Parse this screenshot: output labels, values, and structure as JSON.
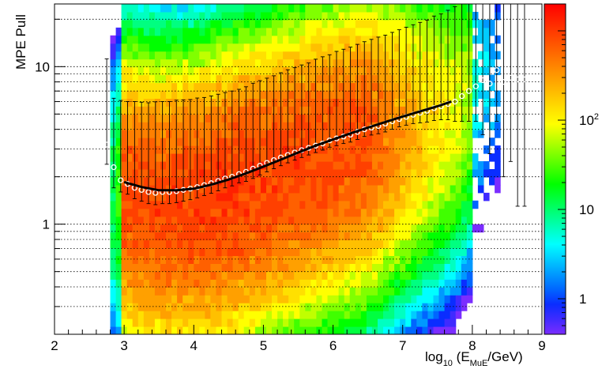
{
  "chart_data": {
    "type": "heatmap",
    "title": "",
    "xlabel": {
      "prefix": "log",
      "sub1": "10",
      "mid": " (E",
      "sub2": "MuE",
      "suffix": "/GeV)"
    },
    "ylabel": "MPE Pull",
    "xlim": [
      2,
      9
    ],
    "ylim": [
      0.2,
      25
    ],
    "y_scale": "log",
    "x_ticks": [
      "2",
      "3",
      "4",
      "5",
      "6",
      "7",
      "8",
      "9"
    ],
    "y_ticks": [
      {
        "value": 1,
        "label": "1"
      },
      {
        "value": 10,
        "label": "10"
      }
    ],
    "colorbar": {
      "scale": "log",
      "range": [
        0.4,
        2000
      ],
      "ticks": [
        {
          "value": 1,
          "label": "1"
        },
        {
          "value": 10,
          "label": "10"
        },
        {
          "value": 100,
          "label": "10",
          "sup": "2"
        }
      ],
      "colors": [
        "#7b2dff",
        "#3f2bff",
        "#0a2dff",
        "#0066ff",
        "#0099ff",
        "#00ccff",
        "#00ffff",
        "#00ffc0",
        "#00ff80",
        "#00ff40",
        "#00ff00",
        "#40ff00",
        "#80ff00",
        "#c0ff00",
        "#ffff00",
        "#ffe000",
        "#ffc000",
        "#ffa000",
        "#ff8000",
        "#ff6000",
        "#ff4000",
        "#ff2000",
        "#ff0000"
      ]
    },
    "grid": {
      "horizontal_dotted": true
    },
    "profile": {
      "x": [
        2.75,
        2.85,
        2.95,
        3.05,
        3.15,
        3.25,
        3.35,
        3.45,
        3.55,
        3.65,
        3.75,
        3.85,
        3.95,
        4.05,
        4.15,
        4.25,
        4.35,
        4.45,
        4.55,
        4.65,
        4.75,
        4.85,
        4.95,
        5.05,
        5.15,
        5.25,
        5.35,
        5.45,
        5.55,
        5.65,
        5.75,
        5.85,
        5.95,
        6.05,
        6.15,
        6.25,
        6.35,
        6.45,
        6.55,
        6.65,
        6.75,
        6.85,
        6.95,
        7.05,
        7.15,
        7.25,
        7.35,
        7.45,
        7.55,
        7.65,
        7.75,
        7.85,
        7.95,
        8.05,
        8.15,
        8.25,
        8.35,
        8.45,
        8.55,
        8.65,
        8.75
      ],
      "y": [
        3.2,
        2.3,
        1.9,
        1.8,
        1.7,
        1.65,
        1.6,
        1.58,
        1.6,
        1.6,
        1.62,
        1.65,
        1.68,
        1.72,
        1.77,
        1.82,
        1.88,
        1.95,
        2.0,
        2.08,
        2.15,
        2.25,
        2.35,
        2.45,
        2.55,
        2.65,
        2.75,
        2.85,
        2.95,
        3.05,
        3.15,
        3.25,
        3.4,
        3.5,
        3.6,
        3.7,
        3.85,
        4.0,
        4.1,
        4.2,
        4.35,
        4.5,
        4.65,
        4.8,
        4.95,
        5.1,
        5.25,
        5.45,
        5.6,
        5.8,
        6.0,
        6.5,
        7.0,
        7.5,
        8.2,
        7.8,
        9.5,
        8.0,
        8.5,
        8.3,
        8.3
      ],
      "err_lo": [
        0.8,
        0.6,
        0.3,
        0.25,
        0.25,
        0.25,
        0.25,
        0.25,
        0.25,
        0.25,
        0.25,
        0.25,
        0.25,
        0.25,
        0.25,
        0.25,
        0.25,
        0.25,
        0.25,
        0.25,
        0.28,
        0.3,
        0.3,
        0.3,
        0.3,
        0.3,
        0.3,
        0.3,
        0.3,
        0.3,
        0.3,
        0.3,
        0.32,
        0.35,
        0.35,
        0.38,
        0.4,
        0.4,
        0.42,
        0.45,
        0.5,
        0.5,
        0.5,
        0.55,
        0.6,
        0.7,
        0.8,
        0.9,
        1.0,
        1.2,
        1.5,
        2.0,
        2.5,
        3.0,
        4.5,
        5.0,
        5.0,
        6.0,
        6.0,
        7.0,
        7.0
      ],
      "err_hi": [
        8.0,
        4.0,
        4.2,
        4.2,
        4.3,
        4.3,
        4.3,
        4.4,
        4.4,
        4.4,
        4.5,
        4.5,
        4.5,
        4.6,
        4.6,
        4.7,
        4.8,
        4.9,
        5.0,
        5.1,
        5.3,
        5.6,
        5.8,
        6.0,
        6.2,
        6.5,
        6.8,
        7.0,
        7.3,
        7.5,
        8.0,
        8.3,
        8.5,
        9.0,
        9.3,
        9.6,
        10.0,
        10.4,
        10.8,
        11.2,
        11.5,
        12.0,
        12.5,
        13.0,
        13.5,
        14.0,
        14.5,
        15.5,
        16.0,
        17.0,
        18.0,
        19.0,
        20.0,
        21.0,
        22.0,
        22.0,
        22.0,
        22.0,
        22.0,
        22.0,
        22.0
      ]
    },
    "fit": {
      "x": [
        3.0,
        3.25,
        3.5,
        3.75,
        4.0,
        4.25,
        4.5,
        4.75,
        5.0,
        5.25,
        5.5,
        5.75,
        6.0,
        6.25,
        6.5,
        6.75,
        7.0,
        7.25,
        7.5,
        7.7
      ],
      "y": [
        1.85,
        1.72,
        1.64,
        1.64,
        1.68,
        1.78,
        1.92,
        2.1,
        2.32,
        2.57,
        2.85,
        3.15,
        3.45,
        3.77,
        4.1,
        4.45,
        4.82,
        5.2,
        5.6,
        6.0
      ]
    }
  }
}
